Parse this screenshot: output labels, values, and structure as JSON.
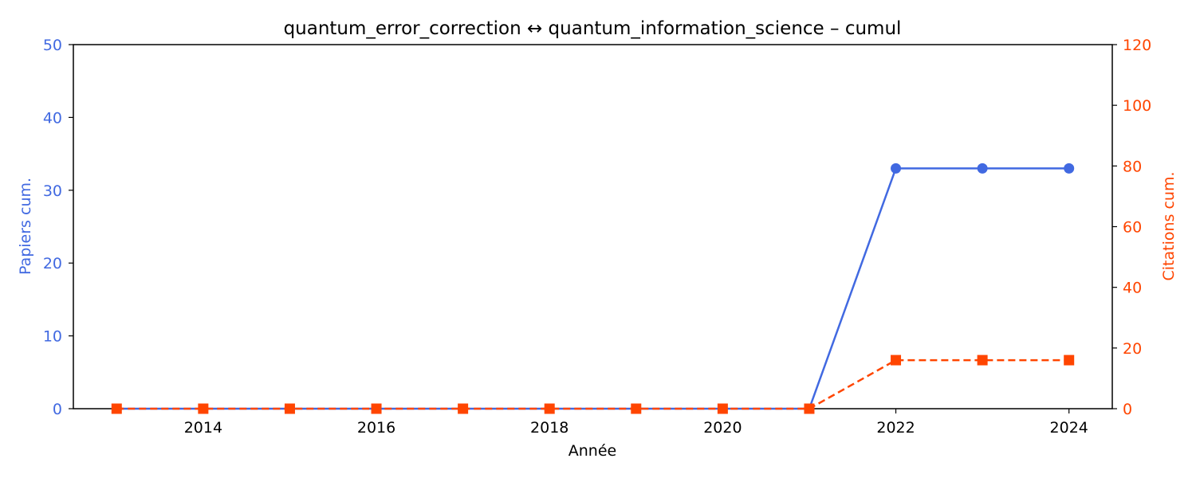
{
  "chart_data": {
    "type": "line",
    "title": "quantum_error_correction  ↔  quantum_information_science  –  cumul",
    "xlabel": "Année",
    "ylabel_left": "Papiers cum.",
    "ylabel_right": "Citations cum.",
    "x": [
      2013,
      2014,
      2015,
      2016,
      2017,
      2018,
      2019,
      2020,
      2021,
      2022,
      2023,
      2024
    ],
    "x_ticks": [
      2014,
      2016,
      2018,
      2020,
      2022,
      2024
    ],
    "xlim": [
      2012.5,
      2024.5
    ],
    "ylim_left": [
      0,
      50
    ],
    "ylim_right": [
      0,
      120
    ],
    "y_ticks_left": [
      0,
      10,
      20,
      30,
      40,
      50
    ],
    "y_ticks_right": [
      0,
      20,
      40,
      60,
      80,
      100,
      120
    ],
    "grid": false,
    "series": [
      {
        "axis": "left",
        "color": "#4169e1",
        "marker": "circle",
        "line_style": "solid",
        "values": [
          0,
          0,
          0,
          0,
          0,
          0,
          0,
          0,
          0,
          33,
          33,
          33
        ]
      },
      {
        "axis": "right",
        "color": "#ff4500",
        "marker": "square",
        "line_style": "dashed",
        "values": [
          0,
          0,
          0,
          0,
          0,
          0,
          0,
          0,
          0,
          16,
          16,
          16
        ]
      }
    ]
  }
}
